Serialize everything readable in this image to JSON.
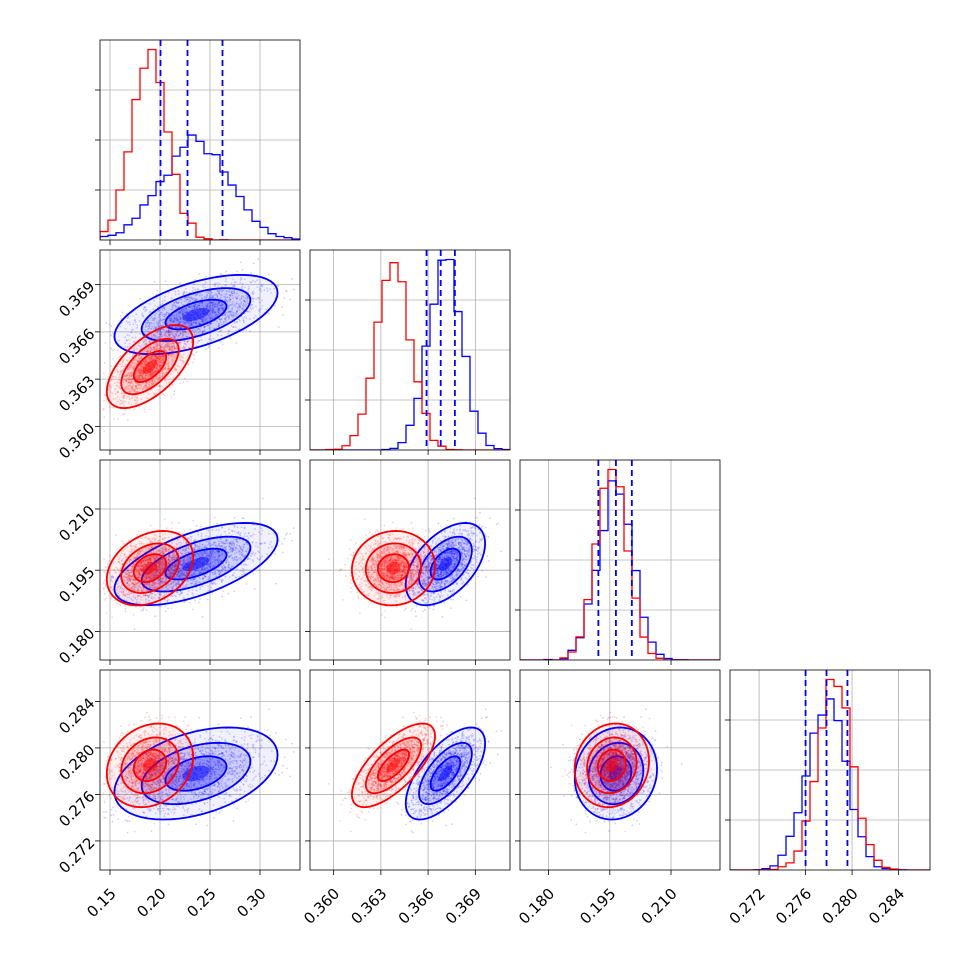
{
  "colors": {
    "series_a": "#0000ff",
    "series_b": "#ff0000",
    "grid": "#b0b0b0"
  },
  "chart_data": {
    "type": "corner",
    "title": "",
    "grid": true,
    "parameters": [
      {
        "index": 0,
        "label": "",
        "range": [
          0.14,
          0.34
        ],
        "ticks": [
          "0.15",
          "0.20",
          "0.25",
          "0.30"
        ]
      },
      {
        "index": 1,
        "label": "",
        "range": [
          0.3585,
          0.3712
        ],
        "ticks": [
          "0.360",
          "0.363",
          "0.366",
          "0.369"
        ]
      },
      {
        "index": 2,
        "label": "",
        "range": [
          0.173,
          0.222
        ],
        "ticks": [
          "0.180",
          "0.195",
          "0.210"
        ]
      },
      {
        "index": 3,
        "label": "",
        "range": [
          0.2695,
          0.2867
        ],
        "ticks": [
          "0.272",
          "0.276",
          "0.280",
          "0.284"
        ]
      }
    ],
    "series": [
      {
        "color": "blue",
        "mean": [
          0.236,
          0.3671,
          0.1965,
          0.2778
        ],
        "std": [
          0.034,
          0.00105,
          0.0042,
          0.00165
        ],
        "quantiles": [
          [
            0.2005,
            0.2275,
            0.2625
          ],
          [
            0.3659,
            0.3668,
            0.3677
          ],
          [
            0.1922,
            0.1965,
            0.2004
          ],
          [
            0.276,
            0.2778,
            0.2796
          ]
        ],
        "correlation": [
          [
            1.0,
            0.55,
            0.6,
            0.4
          ],
          [
            0.55,
            1.0,
            0.5,
            0.65
          ],
          [
            0.6,
            0.5,
            1.0,
            0.1
          ],
          [
            0.4,
            0.65,
            0.1,
            1.0
          ]
        ]
      },
      {
        "color": "red",
        "mean": [
          0.19,
          0.3638,
          0.1955,
          0.2785
        ],
        "std": [
          0.018,
          0.0011,
          0.0038,
          0.0015
        ],
        "quantiles": [],
        "correlation": [
          [
            1.0,
            0.6,
            0.3,
            0.2
          ],
          [
            0.6,
            1.0,
            0.05,
            0.7
          ],
          [
            0.3,
            0.05,
            1.0,
            0.1
          ],
          [
            0.2,
            0.7,
            0.1,
            1.0
          ]
        ]
      }
    ]
  }
}
